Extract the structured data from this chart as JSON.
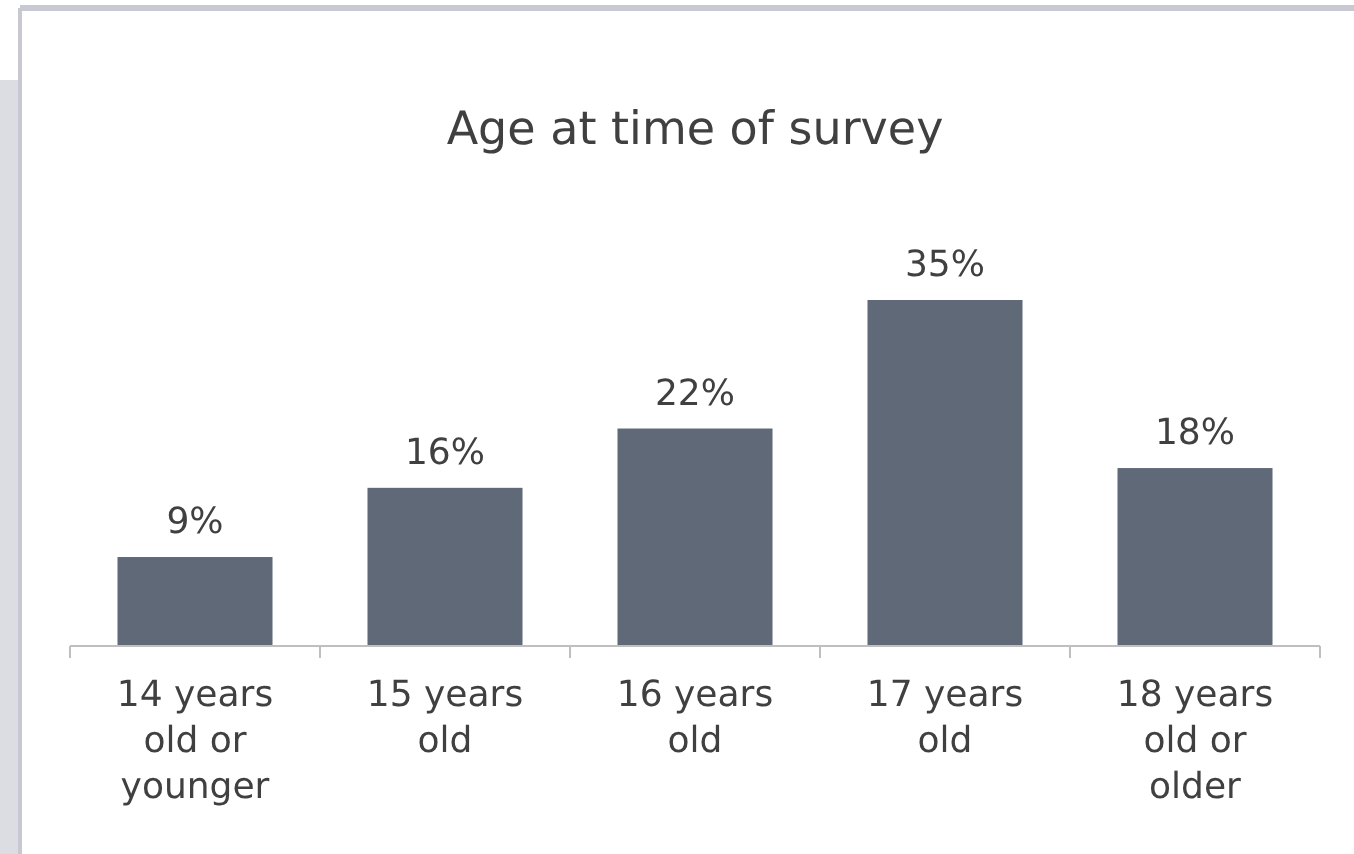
{
  "chart_data": {
    "type": "bar",
    "title": "Age at time of survey",
    "categories": [
      "14 years old or younger",
      "15 years old",
      "16 years old",
      "17 years old",
      "18 years old or older"
    ],
    "values": [
      9,
      16,
      22,
      35,
      18
    ],
    "value_labels": [
      "9%",
      "16%",
      "22%",
      "35%",
      "18%"
    ],
    "color": "#5f6977"
  }
}
